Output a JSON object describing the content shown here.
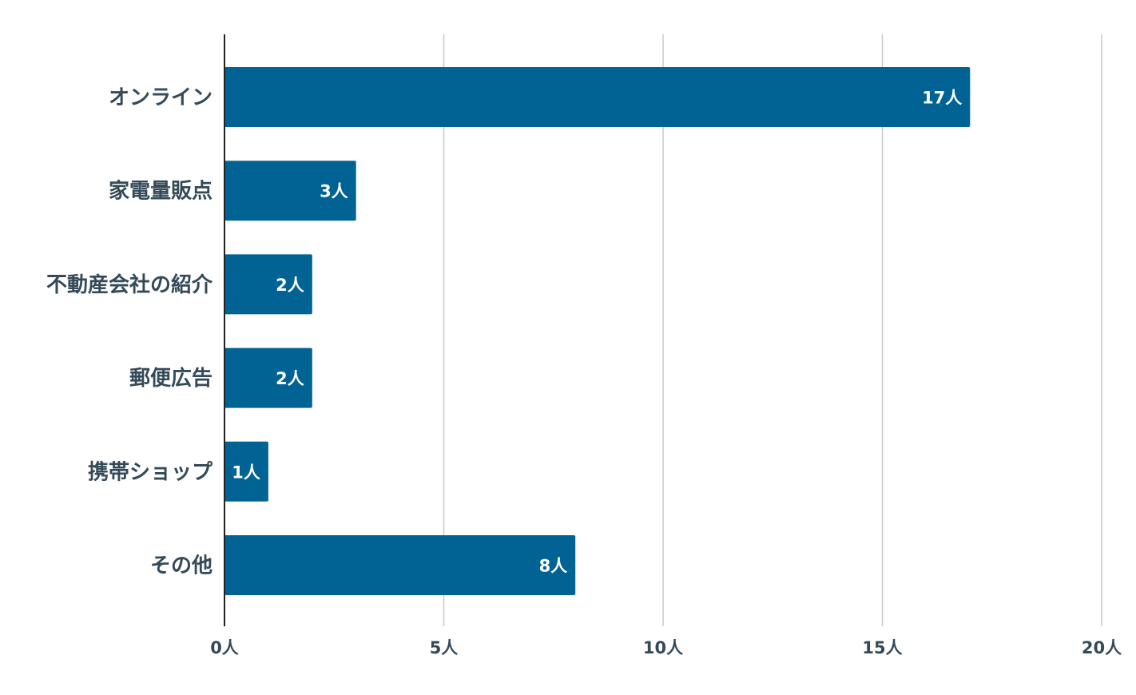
{
  "chart_data": {
    "type": "bar",
    "orientation": "horizontal",
    "categories": [
      "オンライン",
      "家電量販点",
      "不動産会社の紹介",
      "郵便広告",
      "携帯ショップ",
      "その他"
    ],
    "values": [
      17,
      3,
      2,
      2,
      1,
      8
    ],
    "value_labels": [
      "17人",
      "3人",
      "2人",
      "2人",
      "1人",
      "8人"
    ],
    "xlim": [
      0,
      20
    ],
    "x_ticks": [
      0,
      5,
      10,
      15,
      20
    ],
    "x_tick_labels": [
      "0人",
      "5人",
      "10人",
      "15人",
      "20人"
    ],
    "grid": true,
    "legend": "none",
    "title": "",
    "xlabel": "",
    "ylabel": ""
  },
  "colors": {
    "bar": "#006394",
    "bar_label": "#ffffff",
    "category_label": "#344a59",
    "tick_label": "#344a59",
    "gridline": "#c8c8c8",
    "axis_line": "#222222"
  }
}
